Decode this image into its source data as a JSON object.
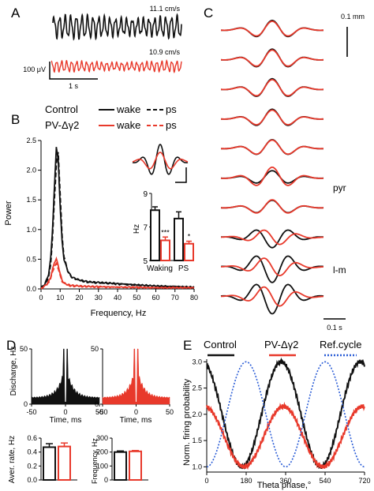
{
  "colors": {
    "control": "#111111",
    "mutant": "#e8392b",
    "ref": "#2a5cd6"
  },
  "panelA": {
    "label": "A",
    "speed_control": "11.1 cm/s",
    "speed_mutant": "10.9 cm/s",
    "scale_v": "100 μV",
    "scale_t": "1 s"
  },
  "panelB": {
    "label": "B",
    "legend": {
      "control": "Control",
      "mutant": "PV-Δγ2",
      "wake": "wake",
      "ps": "ps"
    },
    "chart_data": {
      "type": "line",
      "xlabel": "Frequency, Hz",
      "ylabel": "Power",
      "xlim": [
        0,
        80
      ],
      "ylim": [
        0,
        2.5
      ],
      "xticks": [
        "0",
        "10",
        "20",
        "30",
        "40",
        "50",
        "60",
        "70",
        "80"
      ],
      "yticks": [
        "0.0",
        "0.5",
        "1.0",
        "1.5",
        "2.0",
        "2.5"
      ],
      "x": [
        0,
        2,
        4,
        5,
        6,
        7,
        8,
        9,
        10,
        11,
        12,
        14,
        16,
        20,
        25,
        30,
        40,
        50,
        60,
        70,
        80
      ],
      "series": [
        {
          "name": "Control wake",
          "style": "solid",
          "color": "control",
          "values": [
            0.02,
            0.08,
            0.25,
            0.5,
            1.0,
            1.7,
            2.4,
            2.15,
            1.4,
            0.8,
            0.5,
            0.3,
            0.2,
            0.15,
            0.12,
            0.11,
            0.09,
            0.07,
            0.05,
            0.04,
            0.03
          ]
        },
        {
          "name": "Control ps",
          "style": "dashed",
          "color": "control",
          "values": [
            0.02,
            0.07,
            0.2,
            0.4,
            0.85,
            1.5,
            2.1,
            2.3,
            1.6,
            0.9,
            0.55,
            0.3,
            0.2,
            0.14,
            0.11,
            0.1,
            0.08,
            0.06,
            0.05,
            0.04,
            0.03
          ]
        },
        {
          "name": "PV-Δγ2 wake",
          "style": "solid",
          "color": "mutant",
          "values": [
            0.01,
            0.05,
            0.12,
            0.2,
            0.32,
            0.45,
            0.5,
            0.4,
            0.25,
            0.15,
            0.1,
            0.07,
            0.06,
            0.05,
            0.04,
            0.04,
            0.03,
            0.03,
            0.02,
            0.02,
            0.02
          ]
        },
        {
          "name": "PV-Δγ2 ps",
          "style": "dashed",
          "color": "mutant",
          "values": [
            0.01,
            0.04,
            0.1,
            0.18,
            0.28,
            0.38,
            0.42,
            0.35,
            0.22,
            0.13,
            0.09,
            0.06,
            0.05,
            0.04,
            0.04,
            0.03,
            0.03,
            0.02,
            0.02,
            0.02,
            0.02
          ]
        }
      ]
    },
    "inset": {
      "chart_data": {
        "type": "bar",
        "ylabel": "Hz",
        "ylim": [
          5,
          9
        ],
        "yticks": [
          "5",
          "7",
          "9"
        ],
        "categories": [
          "Waking",
          "PS"
        ],
        "series": [
          {
            "name": "Control",
            "color": "control",
            "values": [
              8.0,
              7.5
            ],
            "err": [
              0.2,
              0.4
            ]
          },
          {
            "name": "PV-Δγ2",
            "color": "mutant",
            "values": [
              6.2,
              6.0
            ],
            "err": [
              0.2,
              0.15
            ]
          }
        ],
        "annotations": [
          "***",
          "*"
        ]
      }
    }
  },
  "panelC": {
    "label": "C",
    "scale_v": "0.1 mm",
    "scale_t": "0.1 s",
    "layer_pyr": "pyr",
    "layer_lm": "l-m",
    "amp_control": [
      0.55,
      0.6,
      0.6,
      0.55,
      0.5,
      0.42,
      0.42,
      0.6,
      0.9,
      1.0
    ],
    "amp_mutant": [
      0.5,
      0.55,
      0.55,
      0.5,
      0.48,
      0.62,
      0.45,
      0.45,
      0.55,
      0.6
    ]
  },
  "panelD": {
    "label": "D",
    "hist_ylabel": "Discharge, Hz",
    "hist_xlabel": "Time, ms",
    "hist_xticks": [
      "-50",
      "0",
      "50"
    ],
    "hist_yticks": [
      "0",
      "50"
    ],
    "chart_data": [
      {
        "type": "bar",
        "ylabel": "Aver. rate, Hz",
        "ylim": [
          0,
          0.6
        ],
        "yticks": [
          "0.0",
          "0.2",
          "0.4",
          "0.6"
        ],
        "series": [
          {
            "name": "Control",
            "color": "control",
            "values": [
              0.47
            ],
            "err": [
              0.05
            ]
          },
          {
            "name": "PV-Δγ2",
            "color": "mutant",
            "values": [
              0.48
            ],
            "err": [
              0.05
            ]
          }
        ]
      },
      {
        "type": "bar",
        "ylabel": "Frequency, Hz",
        "ylim": [
          0,
          300
        ],
        "yticks": [
          "0",
          "100",
          "200",
          "300"
        ],
        "series": [
          {
            "name": "Control",
            "color": "control",
            "values": [
              200
            ],
            "err": [
              8
            ]
          },
          {
            "name": "PV-Δγ2",
            "color": "mutant",
            "values": [
              205
            ],
            "err": [
              6
            ]
          }
        ]
      }
    ]
  },
  "panelE": {
    "label": "E",
    "legend": {
      "control": "Control",
      "mutant": "PV-Δγ2",
      "ref": "Ref.cycle"
    },
    "chart_data": {
      "type": "line",
      "xlabel": "Theta phase,°",
      "ylabel": "Norm. firing probability",
      "xlim": [
        0,
        720
      ],
      "ylim": [
        0.9,
        3.05
      ],
      "xticks": [
        "0",
        "180",
        "360",
        "540",
        "720"
      ],
      "yticks": [
        "1.0",
        "1.5",
        "2.0",
        "2.5",
        "3.0"
      ],
      "series": [
        {
          "name": "Control",
          "color": "control",
          "min": 1.0,
          "max": 3.0,
          "peak_phase": 340
        },
        {
          "name": "PV-Δγ2",
          "color": "mutant",
          "min": 1.0,
          "max": 2.15,
          "peak_phase": 350
        },
        {
          "name": "Ref.cycle",
          "color": "ref",
          "style": "dotted",
          "min": 1.0,
          "max": 3.0,
          "peak_phase": 180
        }
      ]
    }
  }
}
